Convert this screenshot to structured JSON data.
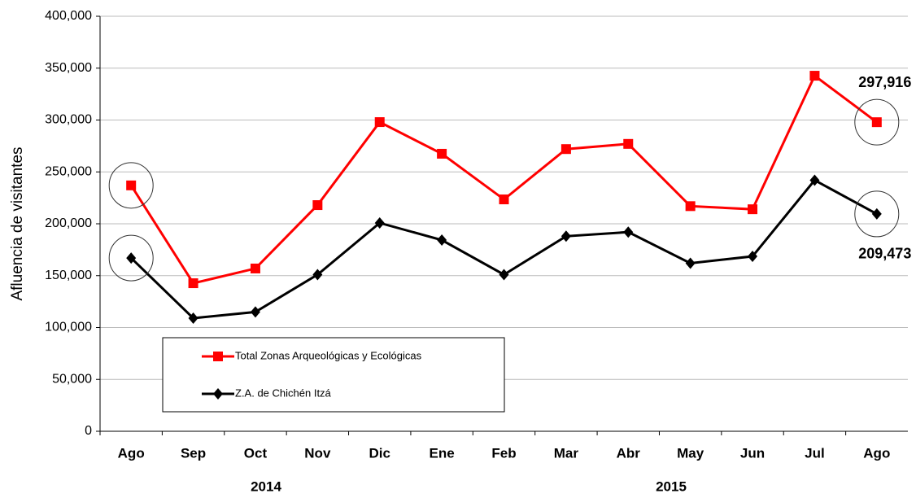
{
  "chart_data": {
    "type": "line",
    "y_label": "Afluencia de visitantes",
    "categories": [
      "Ago",
      "Sep",
      "Oct",
      "Nov",
      "Dic",
      "Ene",
      "Feb",
      "Mar",
      "Abr",
      "May",
      "Jun",
      "Jul",
      "Ago"
    ],
    "year_labels": [
      "2014",
      "2015"
    ],
    "series": [
      {
        "name": "Total Zonas Arqueológicas y Ecológicas",
        "color": "#ff0000",
        "marker": "square",
        "values": [
          237000,
          142700,
          156900,
          218000,
          298000,
          267500,
          223500,
          272000,
          277000,
          217000,
          214000,
          342700,
          297916
        ],
        "value_labels": [
          null,
          null,
          null,
          null,
          null,
          null,
          null,
          null,
          null,
          null,
          null,
          null,
          "297,916"
        ]
      },
      {
        "name": "Z.A. de Chichén Itzá",
        "color": "#000000",
        "marker": "diamond",
        "values": [
          167000,
          109000,
          115000,
          151000,
          200800,
          184300,
          151000,
          188000,
          192000,
          162000,
          168600,
          242000,
          209473
        ],
        "value_labels": [
          null,
          null,
          null,
          null,
          null,
          null,
          null,
          null,
          null,
          null,
          null,
          null,
          "209,473"
        ]
      }
    ],
    "ylim": [
      0,
      400000
    ],
    "yticks": [
      0,
      {
        "value": 50000,
        "label": "50,000"
      },
      {
        "value": 100000,
        "label": "100,000"
      },
      {
        "value": 150000,
        "label": "150,000"
      },
      {
        "value": 200000,
        "label": "200,000"
      },
      {
        "value": 250000,
        "label": "250,000"
      },
      {
        "value": 300000,
        "label": "300,000"
      },
      {
        "value": 350000,
        "label": "350,000"
      },
      {
        "value": 400000,
        "label": "400,000"
      }
    ],
    "grid": true
  }
}
